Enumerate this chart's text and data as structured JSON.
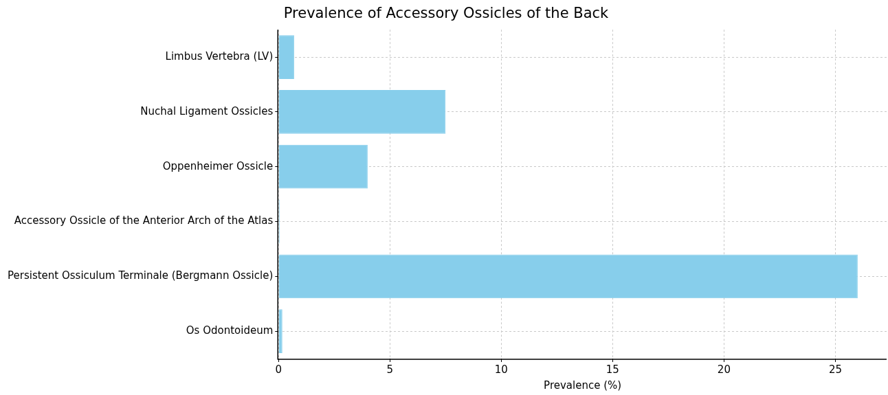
{
  "chart_data": {
    "type": "bar",
    "orientation": "horizontal",
    "title": "Prevalence of Accessory Ossicles of the Back",
    "xlabel": "Prevalence (%)",
    "categories": [
      "Limbus Vertebra (LV)",
      "Nuchal Ligament Ossicles",
      "Oppenheimer Ossicle",
      "Accessory Ossicle of the Anterior Arch of the Atlas",
      "Persistent Ossiculum Terminale (Bergmann Ossicle)",
      "Os Odontoideum"
    ],
    "values": [
      0.7,
      7.5,
      4.0,
      0.05,
      26.0,
      0.17
    ],
    "color": "#87ceeb",
    "xlim": [
      0,
      27.3
    ],
    "xticks": [
      0,
      5,
      10,
      15,
      20,
      25
    ],
    "grid": true
  }
}
